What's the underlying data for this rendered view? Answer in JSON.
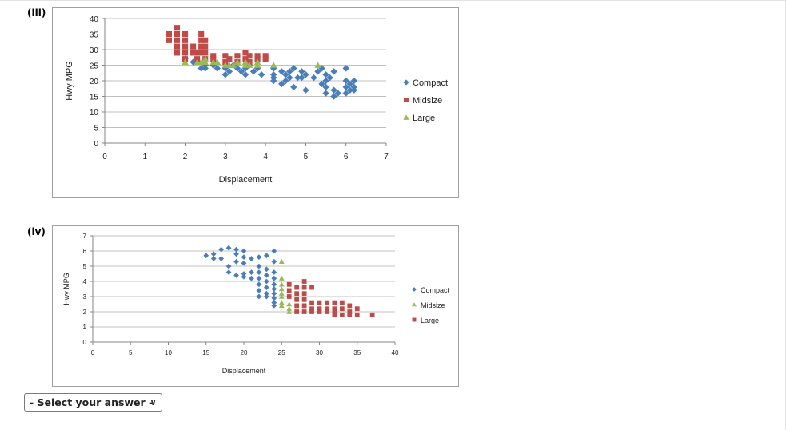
{
  "questions": [
    {
      "label": "(iii)",
      "chart_data": {
        "type": "scatter",
        "xlabel": "Displacement",
        "ylabel": "Hwy MPG",
        "xlim": [
          0,
          7
        ],
        "ylim": [
          0,
          40
        ],
        "xticks": [
          0,
          1,
          2,
          3,
          4,
          5,
          6,
          7
        ],
        "yticks": [
          0,
          5,
          10,
          15,
          20,
          25,
          30,
          35,
          40
        ],
        "grid": "horizontal",
        "legend": "right",
        "series": [
          {
            "name": "Compact",
            "marker": "diamond",
            "color": "#4a7ebb",
            "points": [
              [
                2.0,
                27
              ],
              [
                2.2,
                26
              ],
              [
                2.4,
                24
              ],
              [
                2.5,
                24
              ],
              [
                2.5,
                25
              ],
              [
                2.7,
                25
              ],
              [
                2.8,
                24
              ],
              [
                3.0,
                22
              ],
              [
                3.0,
                24
              ],
              [
                3.1,
                23
              ],
              [
                3.2,
                25
              ],
              [
                3.3,
                24
              ],
              [
                3.4,
                23
              ],
              [
                3.5,
                22
              ],
              [
                3.5,
                24
              ],
              [
                3.6,
                25
              ],
              [
                3.7,
                23
              ],
              [
                3.8,
                24
              ],
              [
                3.9,
                22
              ],
              [
                4.2,
                24
              ],
              [
                4.2,
                22
              ],
              [
                4.2,
                21
              ],
              [
                4.2,
                20
              ],
              [
                4.4,
                23
              ],
              [
                4.4,
                19
              ],
              [
                4.5,
                22
              ],
              [
                4.5,
                20
              ],
              [
                4.6,
                21
              ],
              [
                4.6,
                23
              ],
              [
                4.7,
                24
              ],
              [
                4.7,
                18
              ],
              [
                4.8,
                21
              ],
              [
                4.9,
                23
              ],
              [
                4.9,
                21
              ],
              [
                5.0,
                22
              ],
              [
                5.2,
                21
              ],
              [
                5.3,
                23
              ],
              [
                5.4,
                24
              ],
              [
                5.0,
                17
              ],
              [
                5.4,
                19
              ],
              [
                5.5,
                22
              ],
              [
                5.5,
                20
              ],
              [
                5.5,
                18
              ],
              [
                5.5,
                16
              ],
              [
                5.6,
                21
              ],
              [
                5.7,
                17
              ],
              [
                5.7,
                15
              ],
              [
                5.7,
                23
              ],
              [
                5.8,
                16
              ],
              [
                6.0,
                24
              ],
              [
                6.0,
                20
              ],
              [
                6.0,
                16
              ],
              [
                6.0,
                18
              ],
              [
                6.1,
                19
              ],
              [
                6.1,
                17
              ],
              [
                6.2,
                18
              ],
              [
                6.2,
                20
              ],
              [
                6.2,
                17
              ]
            ]
          },
          {
            "name": "Midsize",
            "marker": "square",
            "color": "#be4b48",
            "points": [
              [
                1.6,
                33
              ],
              [
                1.6,
                35
              ],
              [
                1.8,
                29
              ],
              [
                1.8,
                31
              ],
              [
                1.8,
                33
              ],
              [
                1.8,
                35
              ],
              [
                1.8,
                37
              ],
              [
                2.0,
                27
              ],
              [
                2.0,
                29
              ],
              [
                2.0,
                31
              ],
              [
                2.0,
                33
              ],
              [
                2.0,
                35
              ],
              [
                2.2,
                29
              ],
              [
                2.2,
                31
              ],
              [
                2.3,
                27
              ],
              [
                2.3,
                29
              ],
              [
                2.4,
                29
              ],
              [
                2.4,
                31
              ],
              [
                2.4,
                33
              ],
              [
                2.4,
                35
              ],
              [
                2.5,
                27
              ],
              [
                2.5,
                29
              ],
              [
                2.5,
                31
              ],
              [
                2.5,
                33
              ],
              [
                2.7,
                27
              ],
              [
                2.7,
                28
              ],
              [
                3.0,
                26
              ],
              [
                3.0,
                28
              ],
              [
                3.1,
                27
              ],
              [
                3.3,
                26
              ],
              [
                3.3,
                28
              ],
              [
                3.5,
                27
              ],
              [
                3.5,
                29
              ],
              [
                3.6,
                26
              ],
              [
                3.6,
                28
              ],
              [
                3.8,
                27
              ],
              [
                3.8,
                28
              ],
              [
                4.0,
                28
              ],
              [
                4.0,
                27
              ]
            ]
          },
          {
            "name": "Large",
            "marker": "triangle",
            "color": "#98b954",
            "points": [
              [
                2.0,
                26
              ],
              [
                2.3,
                26
              ],
              [
                2.4,
                26
              ],
              [
                2.5,
                26
              ],
              [
                2.5,
                27
              ],
              [
                2.7,
                26
              ],
              [
                2.8,
                26
              ],
              [
                3.0,
                25
              ],
              [
                3.1,
                25
              ],
              [
                3.2,
                25
              ],
              [
                3.3,
                26
              ],
              [
                3.5,
                25
              ],
              [
                3.5,
                26
              ],
              [
                3.6,
                25
              ],
              [
                3.8,
                26
              ],
              [
                3.8,
                25
              ],
              [
                4.2,
                25
              ],
              [
                5.3,
                25
              ]
            ]
          }
        ]
      }
    },
    {
      "label": "(iv)",
      "chart_data": {
        "type": "scatter",
        "xlabel": "Displacement",
        "ylabel": "Hwy MPG",
        "xlim": [
          0,
          40
        ],
        "ylim": [
          0,
          7
        ],
        "xticks": [
          0,
          5,
          10,
          15,
          20,
          25,
          30,
          35,
          40
        ],
        "yticks": [
          0,
          1,
          2,
          3,
          4,
          5,
          6,
          7
        ],
        "grid": "horizontal",
        "legend": "right",
        "series": [
          {
            "name": "Compact",
            "marker": "diamond",
            "color": "#4a7ebb",
            "points": [
              [
                15,
                5.7
              ],
              [
                16,
                5.5
              ],
              [
                16,
                5.8
              ],
              [
                17,
                5.5
              ],
              [
                17,
                6.1
              ],
              [
                18,
                6.2
              ],
              [
                18,
                5.0
              ],
              [
                18,
                4.6
              ],
              [
                19,
                6.1
              ],
              [
                19,
                5.8
              ],
              [
                19,
                5.3
              ],
              [
                19,
                4.4
              ],
              [
                20,
                6.0
              ],
              [
                20,
                5.6
              ],
              [
                20,
                5.2
              ],
              [
                20,
                4.5
              ],
              [
                20,
                4.3
              ],
              [
                21,
                5.5
              ],
              [
                21,
                4.6
              ],
              [
                21,
                4.2
              ],
              [
                22,
                5.6
              ],
              [
                22,
                5.0
              ],
              [
                22,
                4.6
              ],
              [
                22,
                4.2
              ],
              [
                22,
                3.8
              ],
              [
                22,
                3.4
              ],
              [
                22,
                3.0
              ],
              [
                23,
                5.7
              ],
              [
                23,
                4.8
              ],
              [
                23,
                4.4
              ],
              [
                23,
                4.0
              ],
              [
                23,
                3.6
              ],
              [
                23,
                3.2
              ],
              [
                23,
                3.0
              ],
              [
                24,
                6.0
              ],
              [
                24,
                5.3
              ],
              [
                24,
                4.6
              ],
              [
                24,
                4.2
              ],
              [
                24,
                3.8
              ],
              [
                24,
                3.5
              ],
              [
                24,
                3.2
              ],
              [
                24,
                2.9
              ],
              [
                24,
                2.6
              ],
              [
                24,
                2.4
              ]
            ]
          },
          {
            "name": "Midsize",
            "marker": "triangle",
            "color": "#98b954",
            "points": [
              [
                25,
                5.3
              ],
              [
                25,
                4.2
              ],
              [
                25,
                3.8
              ],
              [
                25,
                3.5
              ],
              [
                25,
                3.2
              ],
              [
                25,
                3.0
              ],
              [
                25,
                2.6
              ],
              [
                25,
                2.4
              ],
              [
                26,
                2.2
              ],
              [
                26,
                2.0
              ],
              [
                26,
                2.5
              ]
            ]
          },
          {
            "name": "Large",
            "marker": "square",
            "color": "#be4b48",
            "points": [
              [
                26,
                3.8
              ],
              [
                26,
                3.4
              ],
              [
                26,
                3.0
              ],
              [
                27,
                3.6
              ],
              [
                27,
                3.2
              ],
              [
                27,
                2.8
              ],
              [
                27,
                2.4
              ],
              [
                27,
                2.0
              ],
              [
                28,
                4.0
              ],
              [
                28,
                3.6
              ],
              [
                28,
                3.2
              ],
              [
                28,
                2.8
              ],
              [
                28,
                2.4
              ],
              [
                28,
                2.0
              ],
              [
                29,
                3.6
              ],
              [
                29,
                2.6
              ],
              [
                29,
                2.2
              ],
              [
                29,
                2.0
              ],
              [
                30,
                2.6
              ],
              [
                30,
                2.2
              ],
              [
                30,
                2.0
              ],
              [
                31,
                2.6
              ],
              [
                31,
                2.2
              ],
              [
                31,
                2.0
              ],
              [
                32,
                2.6
              ],
              [
                32,
                2.2
              ],
              [
                32,
                2.0
              ],
              [
                32,
                1.8
              ],
              [
                33,
                2.6
              ],
              [
                33,
                2.2
              ],
              [
                33,
                1.8
              ],
              [
                34,
                2.4
              ],
              [
                34,
                2.0
              ],
              [
                34,
                1.8
              ],
              [
                35,
                2.2
              ],
              [
                35,
                1.8
              ],
              [
                37,
                1.8
              ]
            ]
          }
        ]
      }
    }
  ],
  "answer_select": {
    "value": "- Select your answer -",
    "chevron_icon": "chevron-down-icon"
  }
}
